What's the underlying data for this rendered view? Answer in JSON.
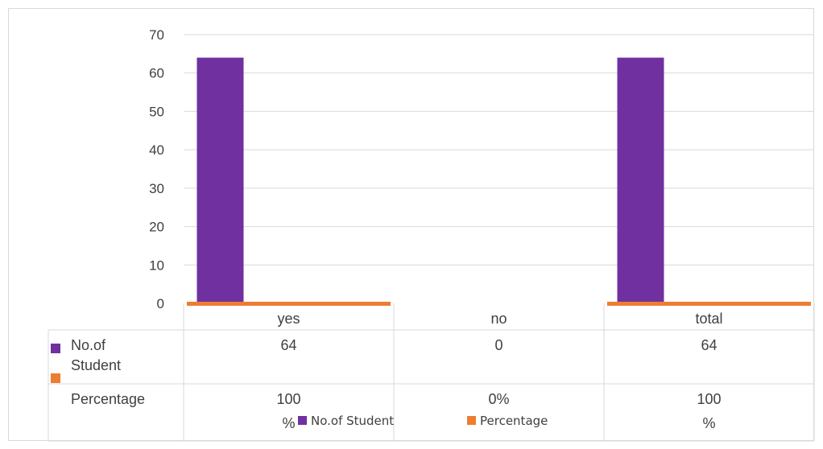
{
  "chart_data": {
    "type": "bar",
    "categories": [
      "yes",
      "no",
      "total"
    ],
    "series": [
      {
        "name": "No.of Student",
        "values": [
          64,
          0,
          64
        ],
        "color": "#7030a0",
        "row_label_lines": [
          "No.of",
          "Student"
        ]
      },
      {
        "name": "Percentage",
        "values": [
          1.0,
          0.0,
          1.0
        ],
        "color": "#ed7d31",
        "row_label_lines": [
          "Percentage"
        ]
      }
    ],
    "table_cells": [
      [
        [
          "64"
        ],
        [
          "0"
        ],
        [
          "64"
        ]
      ],
      [
        [
          "100",
          "%"
        ],
        [
          "0%"
        ],
        [
          "100",
          "%"
        ]
      ]
    ],
    "yticks": [
      "0",
      "10",
      "20",
      "30",
      "40",
      "50",
      "60",
      "70"
    ],
    "ylim": [
      0,
      70
    ],
    "grid": true,
    "legend_position": "bottom"
  }
}
